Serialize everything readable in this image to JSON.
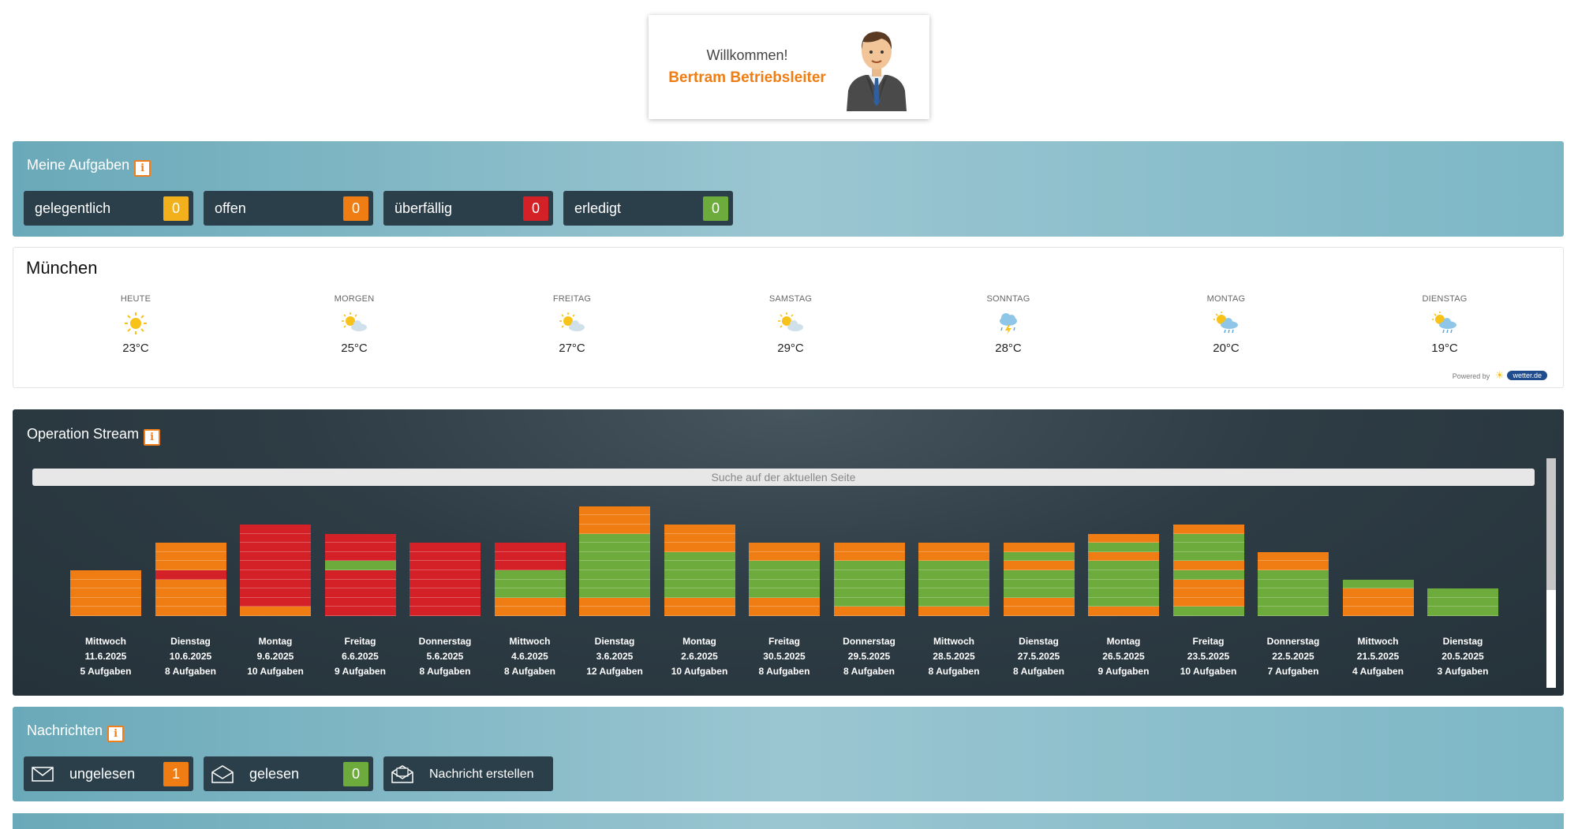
{
  "welcome": {
    "greeting": "Willkommen!",
    "user_name": "Bertram Betriebsleiter"
  },
  "tasks": {
    "title": "Meine Aufgaben",
    "buttons": [
      {
        "label": "gelegentlich",
        "count": "0",
        "color": "#f2b01c"
      },
      {
        "label": "offen",
        "count": "0",
        "color": "#ef7d14"
      },
      {
        "label": "überfällig",
        "count": "0",
        "color": "#d42127"
      },
      {
        "label": "erledigt",
        "count": "0",
        "color": "#6dab3c"
      }
    ]
  },
  "weather": {
    "city": "München",
    "days": [
      {
        "name": "HEUTE",
        "temp": "23°C",
        "icon": "sun-icon"
      },
      {
        "name": "MORGEN",
        "temp": "25°C",
        "icon": "partly-cloudy-icon"
      },
      {
        "name": "FREITAG",
        "temp": "27°C",
        "icon": "partly-cloudy-icon"
      },
      {
        "name": "SAMSTAG",
        "temp": "29°C",
        "icon": "partly-cloudy-icon"
      },
      {
        "name": "SONNTAG",
        "temp": "28°C",
        "icon": "thunderstorm-icon"
      },
      {
        "name": "MONTAG",
        "temp": "20°C",
        "icon": "sun-rain-icon"
      },
      {
        "name": "DIENSTAG",
        "temp": "19°C",
        "icon": "sun-rain-icon"
      }
    ],
    "powered_by": "Powered by",
    "brand": "wetter.de"
  },
  "operation_stream": {
    "title": "Operation Stream",
    "search_placeholder": "Suche auf der aktuellen Seite",
    "colors": {
      "orange": "#ef7d14",
      "red": "#d42127",
      "green": "#6dab3c"
    },
    "days": [
      {
        "weekday": "Mittwoch",
        "date": "11.6.2025",
        "count_label": "5 Aufgaben",
        "segments": [
          "orange",
          "orange",
          "orange",
          "orange",
          "orange"
        ]
      },
      {
        "weekday": "Dienstag",
        "date": "10.6.2025",
        "count_label": "8 Aufgaben",
        "segments": [
          "orange",
          "orange",
          "orange",
          "orange",
          "red",
          "orange",
          "orange",
          "orange"
        ]
      },
      {
        "weekday": "Montag",
        "date": "9.6.2025",
        "count_label": "10 Aufgaben",
        "segments": [
          "orange",
          "red",
          "red",
          "red",
          "red",
          "red",
          "red",
          "red",
          "red",
          "red"
        ]
      },
      {
        "weekday": "Freitag",
        "date": "6.6.2025",
        "count_label": "9 Aufgaben",
        "segments": [
          "red",
          "red",
          "red",
          "red",
          "red",
          "green",
          "red",
          "red",
          "red"
        ]
      },
      {
        "weekday": "Donnerstag",
        "date": "5.6.2025",
        "count_label": "8 Aufgaben",
        "segments": [
          "red",
          "red",
          "red",
          "red",
          "red",
          "red",
          "red",
          "red"
        ]
      },
      {
        "weekday": "Mittwoch",
        "date": "4.6.2025",
        "count_label": "8 Aufgaben",
        "segments": [
          "orange",
          "orange",
          "green",
          "green",
          "green",
          "red",
          "red",
          "red"
        ]
      },
      {
        "weekday": "Dienstag",
        "date": "3.6.2025",
        "count_label": "12 Aufgaben",
        "segments": [
          "orange",
          "orange",
          "green",
          "green",
          "green",
          "green",
          "green",
          "green",
          "green",
          "orange",
          "orange",
          "orange"
        ]
      },
      {
        "weekday": "Montag",
        "date": "2.6.2025",
        "count_label": "10 Aufgaben",
        "segments": [
          "orange",
          "orange",
          "green",
          "green",
          "green",
          "green",
          "green",
          "orange",
          "orange",
          "orange"
        ]
      },
      {
        "weekday": "Freitag",
        "date": "30.5.2025",
        "count_label": "8 Aufgaben",
        "segments": [
          "orange",
          "orange",
          "green",
          "green",
          "green",
          "green",
          "orange",
          "orange"
        ]
      },
      {
        "weekday": "Donnerstag",
        "date": "29.5.2025",
        "count_label": "8 Aufgaben",
        "segments": [
          "orange",
          "green",
          "green",
          "green",
          "green",
          "green",
          "orange",
          "orange"
        ]
      },
      {
        "weekday": "Mittwoch",
        "date": "28.5.2025",
        "count_label": "8 Aufgaben",
        "segments": [
          "orange",
          "green",
          "green",
          "green",
          "green",
          "green",
          "orange",
          "orange"
        ]
      },
      {
        "weekday": "Dienstag",
        "date": "27.5.2025",
        "count_label": "8 Aufgaben",
        "segments": [
          "orange",
          "orange",
          "green",
          "green",
          "green",
          "orange",
          "green",
          "orange"
        ]
      },
      {
        "weekday": "Montag",
        "date": "26.5.2025",
        "count_label": "9 Aufgaben",
        "segments": [
          "orange",
          "green",
          "green",
          "green",
          "green",
          "green",
          "orange",
          "green",
          "orange"
        ]
      },
      {
        "weekday": "Freitag",
        "date": "23.5.2025",
        "count_label": "10 Aufgaben",
        "segments": [
          "green",
          "orange",
          "orange",
          "orange",
          "green",
          "orange",
          "green",
          "green",
          "green",
          "orange"
        ]
      },
      {
        "weekday": "Donnerstag",
        "date": "22.5.2025",
        "count_label": "7 Aufgaben",
        "segments": [
          "green",
          "green",
          "green",
          "green",
          "green",
          "orange",
          "orange"
        ]
      },
      {
        "weekday": "Mittwoch",
        "date": "21.5.2025",
        "count_label": "4 Aufgaben",
        "segments": [
          "orange",
          "orange",
          "orange",
          "green"
        ]
      },
      {
        "weekday": "Dienstag",
        "date": "20.5.2025",
        "count_label": "3 Aufgaben",
        "segments": [
          "green",
          "green",
          "green"
        ]
      }
    ]
  },
  "messages": {
    "title": "Nachrichten",
    "unread_label": "ungelesen",
    "unread_count": "1",
    "unread_color": "#ef7d14",
    "read_label": "gelesen",
    "read_count": "0",
    "read_color": "#6dab3c",
    "compose_label": "Nachricht erstellen"
  }
}
